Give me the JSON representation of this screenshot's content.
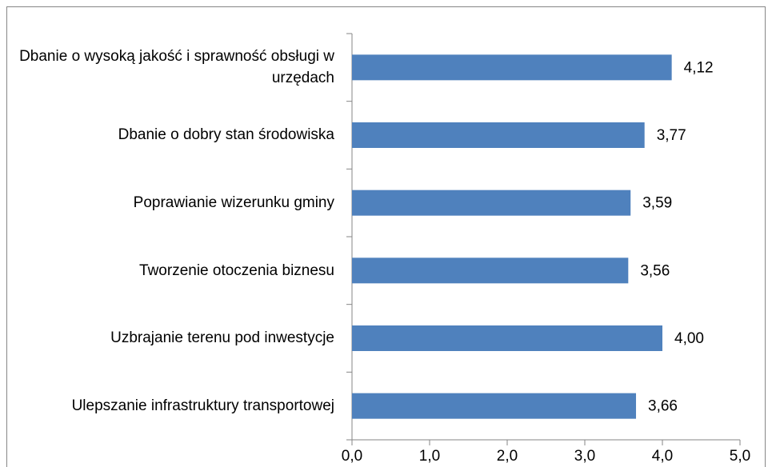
{
  "chart_data": {
    "type": "barh",
    "categories": [
      "Dbanie o wysoką jakość i sprawność obsługi w urzędach",
      "Dbanie o dobry stan środowiska",
      "Poprawianie wizerunku gminy",
      "Tworzenie otoczenia biznesu",
      "Uzbrajanie terenu pod inwestycje",
      "Ulepszanie infrastruktury transportowej"
    ],
    "values": [
      4.12,
      3.77,
      3.59,
      3.56,
      4.0,
      3.66
    ],
    "value_labels": [
      "4,12",
      "3,77",
      "3,59",
      "3,56",
      "4,00",
      "3,66"
    ],
    "color": "#4f81bd",
    "xlim": [
      0,
      5
    ],
    "xticks": [
      {
        "value": 0,
        "label": "0,0"
      },
      {
        "value": 1,
        "label": "1,0"
      },
      {
        "value": 2,
        "label": "2,0"
      },
      {
        "value": 3,
        "label": "3,0"
      },
      {
        "value": 4,
        "label": "4,0"
      },
      {
        "value": 5,
        "label": "5,0"
      }
    ],
    "grid": false
  }
}
